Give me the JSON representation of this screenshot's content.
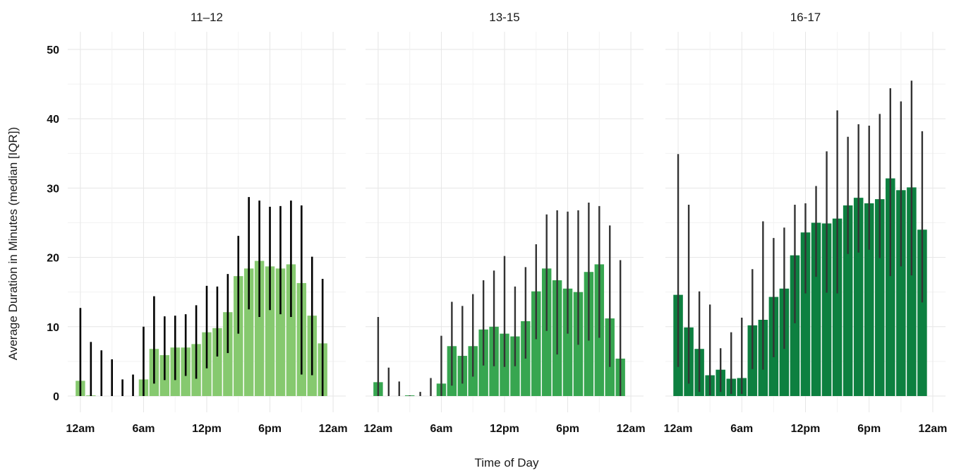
{
  "chart_data": {
    "type": "bar",
    "xlabel": "Time of Day",
    "ylabel": "Average Duration in Minutes (median [IQR])",
    "ylim": [
      0,
      52
    ],
    "y_ticks": [
      0,
      10,
      20,
      30,
      40,
      50
    ],
    "x_ticks": [
      {
        "hour": 0,
        "label": "12am"
      },
      {
        "hour": 6,
        "label": "6am"
      },
      {
        "hour": 12,
        "label": "12pm"
      },
      {
        "hour": 18,
        "label": "6pm"
      },
      {
        "hour": 24,
        "label": "12am"
      }
    ],
    "grid": true,
    "hours": [
      0,
      1,
      2,
      3,
      4,
      5,
      6,
      7,
      8,
      9,
      10,
      11,
      12,
      13,
      14,
      15,
      16,
      17,
      18,
      19,
      20,
      21,
      22,
      23
    ],
    "facets": [
      {
        "title": "11–12",
        "color": "#86c96f",
        "error_color": "#000000",
        "median": [
          2.2,
          0.1,
          0,
          0,
          0,
          0,
          2.4,
          6.8,
          5.9,
          7.0,
          7.0,
          7.5,
          9.2,
          9.8,
          12.1,
          17.3,
          18.4,
          19.5,
          18.7,
          18.4,
          19.0,
          16.3,
          11.6,
          7.6
        ],
        "q1": [
          0,
          0,
          0,
          0,
          0,
          0,
          0,
          1.8,
          2.3,
          2.3,
          2.9,
          2.5,
          4.0,
          5.7,
          6.2,
          9.0,
          12.5,
          11.4,
          12.4,
          11.8,
          11.4,
          3.1,
          3.0,
          0
        ],
        "q3": [
          12.7,
          7.8,
          6.6,
          5.3,
          2.4,
          3.1,
          10.0,
          14.4,
          11.5,
          11.6,
          11.8,
          13.1,
          15.9,
          15.8,
          17.6,
          23.1,
          28.7,
          28.2,
          27.3,
          27.4,
          28.2,
          27.5,
          20.1,
          16.9
        ]
      },
      {
        "title": "13-15",
        "color": "#37a650",
        "error_color": "#333333",
        "median": [
          2.0,
          0,
          0,
          0.1,
          0,
          0,
          1.8,
          7.2,
          5.8,
          7.2,
          9.6,
          10.0,
          9.0,
          8.6,
          10.8,
          15.1,
          18.4,
          16.7,
          15.5,
          15.0,
          17.9,
          19.0,
          11.2,
          5.4
        ],
        "q1": [
          0,
          0,
          0,
          0,
          0,
          0,
          0,
          1.5,
          1.8,
          2.8,
          4.4,
          4.3,
          4.2,
          4.3,
          5.4,
          8.2,
          9.4,
          6.0,
          9.0,
          7.4,
          8.0,
          8.4,
          4.2,
          0
        ],
        "q3": [
          11.4,
          4.1,
          2.1,
          0.1,
          0.6,
          2.6,
          8.7,
          13.6,
          13.0,
          14.7,
          16.7,
          18.1,
          20.2,
          15.8,
          18.6,
          21.9,
          26.2,
          26.8,
          26.6,
          26.8,
          27.9,
          27.4,
          24.6,
          19.6
        ]
      },
      {
        "title": "16-17",
        "color": "#0d8040",
        "error_color": "#333333",
        "median": [
          14.6,
          9.9,
          6.8,
          3.0,
          3.8,
          2.5,
          2.6,
          10.2,
          11.0,
          14.3,
          15.5,
          20.3,
          23.6,
          25.0,
          24.9,
          25.6,
          27.5,
          28.6,
          27.8,
          28.4,
          31.4,
          29.7,
          30.1,
          24.0
        ],
        "q1": [
          4.2,
          1.8,
          0.6,
          0.1,
          0.6,
          0.3,
          0.3,
          3.9,
          3.8,
          5.6,
          6.8,
          10.5,
          14.8,
          17.2,
          14.9,
          14.8,
          20.5,
          20.7,
          21.1,
          19.9,
          17.3,
          18.7,
          17.4,
          13.5
        ],
        "q3": [
          34.9,
          27.6,
          15.1,
          13.2,
          6.9,
          9.2,
          11.3,
          18.3,
          25.2,
          22.8,
          24.3,
          27.6,
          27.8,
          30.3,
          35.3,
          41.2,
          37.4,
          39.2,
          39.0,
          40.7,
          44.4,
          42.5,
          45.5,
          38.2
        ]
      }
    ]
  }
}
